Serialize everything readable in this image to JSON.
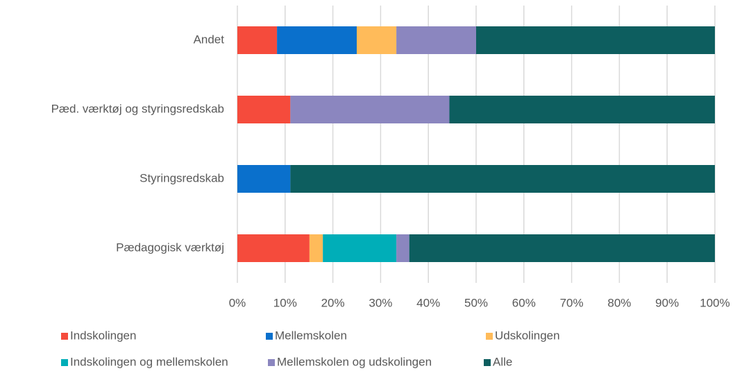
{
  "chart_data": {
    "type": "stacked_bar_horizontal",
    "categories": [
      "Andet",
      "Pæd. værktøj og styringsredskab",
      "Styringsredskab",
      "Pædagogisk værktøj"
    ],
    "series": [
      {
        "name": "Indskolingen",
        "color": "#f54b3c",
        "values": [
          8.3,
          11.1,
          0,
          15.1
        ]
      },
      {
        "name": "Mellemskolen",
        "color": "#0a70cc",
        "values": [
          16.7,
          0,
          11.1,
          0
        ]
      },
      {
        "name": "Udskolingen",
        "color": "#ffbb5a",
        "values": [
          8.3,
          0,
          0,
          2.8
        ]
      },
      {
        "name": "Indskolingen og mellemskolen",
        "color": "#00aeb8",
        "values": [
          0,
          0,
          0,
          15.4
        ]
      },
      {
        "name": "Mellemskolen og udskolingen",
        "color": "#8b86bf",
        "values": [
          16.7,
          33.3,
          0,
          2.7
        ]
      },
      {
        "name": "Alle",
        "color": "#0d5e5f",
        "values": [
          50,
          55.6,
          88.9,
          64.0
        ]
      }
    ],
    "xlim": [
      0,
      100
    ],
    "xticks": [
      {
        "value": 0,
        "label": "0%"
      },
      {
        "value": 10,
        "label": "10%"
      },
      {
        "value": 20,
        "label": "20%"
      },
      {
        "value": 30,
        "label": "30%"
      },
      {
        "value": 40,
        "label": "40%"
      },
      {
        "value": 50,
        "label": "50%"
      },
      {
        "value": 60,
        "label": "60%"
      },
      {
        "value": 70,
        "label": "70%"
      },
      {
        "value": 80,
        "label": "80%"
      },
      {
        "value": 90,
        "label": "90%"
      },
      {
        "value": 100,
        "label": "100%"
      }
    ],
    "grid": true,
    "legend": "bottom"
  }
}
